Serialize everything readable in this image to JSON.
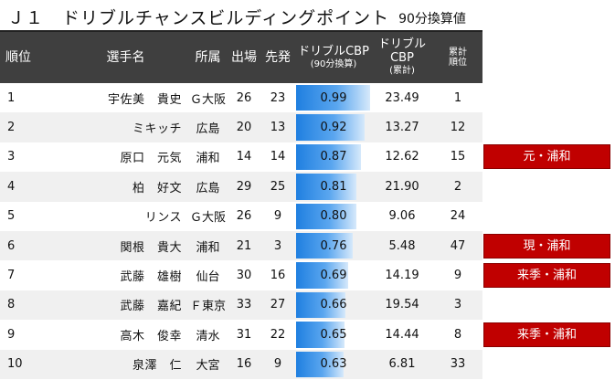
{
  "title": {
    "main": "Ｊ１　ドリブルチャンスビルディングポイント",
    "sub": "90分換算値"
  },
  "headers": {
    "rank": "順位",
    "name": "選手名",
    "club": "所属",
    "apps": "出場",
    "starts": "先発",
    "cbp_line1": "ドリブルCBP",
    "cbp_line2": "(90分換算)",
    "total_line1": "ドリブル",
    "total_line2": "CBP",
    "total_line3": "(累計)",
    "trank_line1": "累計",
    "trank_line2": "順位"
  },
  "rows": [
    {
      "rank": "1",
      "name": "宇佐美　貴史",
      "club": "Ｇ大阪",
      "apps": "26",
      "starts": "23",
      "cbp": "0.99",
      "total": "23.49",
      "total_rank": "1",
      "bar": 0.99,
      "badge": ""
    },
    {
      "rank": "2",
      "name": "ミキッチ",
      "club": "広島",
      "apps": "20",
      "starts": "13",
      "cbp": "0.92",
      "total": "13.27",
      "total_rank": "12",
      "bar": 0.92,
      "badge": ""
    },
    {
      "rank": "3",
      "name": "原口　元気",
      "club": "浦和",
      "apps": "14",
      "starts": "14",
      "cbp": "0.87",
      "total": "12.62",
      "total_rank": "15",
      "bar": 0.87,
      "badge": "元・浦和"
    },
    {
      "rank": "4",
      "name": "柏　好文",
      "club": "広島",
      "apps": "29",
      "starts": "25",
      "cbp": "0.81",
      "total": "21.90",
      "total_rank": "2",
      "bar": 0.81,
      "badge": ""
    },
    {
      "rank": "5",
      "name": "リンス",
      "club": "Ｇ大阪",
      "apps": "26",
      "starts": "9",
      "cbp": "0.80",
      "total": "9.06",
      "total_rank": "24",
      "bar": 0.8,
      "badge": ""
    },
    {
      "rank": "6",
      "name": "関根　貴大",
      "club": "浦和",
      "apps": "21",
      "starts": "3",
      "cbp": "0.76",
      "total": "5.48",
      "total_rank": "47",
      "bar": 0.76,
      "badge": "現・浦和"
    },
    {
      "rank": "7",
      "name": "武藤　雄樹",
      "club": "仙台",
      "apps": "30",
      "starts": "16",
      "cbp": "0.69",
      "total": "14.19",
      "total_rank": "9",
      "bar": 0.69,
      "badge": "来季・浦和"
    },
    {
      "rank": "8",
      "name": "武藤　嘉紀",
      "club": "Ｆ東京",
      "apps": "33",
      "starts": "27",
      "cbp": "0.66",
      "total": "19.54",
      "total_rank": "3",
      "bar": 0.66,
      "badge": ""
    },
    {
      "rank": "9",
      "name": "高木　俊幸",
      "club": "清水",
      "apps": "31",
      "starts": "22",
      "cbp": "0.65",
      "total": "14.44",
      "total_rank": "8",
      "bar": 0.65,
      "badge": "来季・浦和"
    },
    {
      "rank": "10",
      "name": "泉澤　仁",
      "club": "大宮",
      "apps": "16",
      "starts": "9",
      "cbp": "0.63",
      "total": "6.81",
      "total_rank": "33",
      "bar": 0.63,
      "badge": ""
    }
  ],
  "colors": {
    "header_bg": "#3f3f3f",
    "bar": "#1f7fe0",
    "badge_bg": "#c00000",
    "row_alt": "#f0f0f0"
  }
}
